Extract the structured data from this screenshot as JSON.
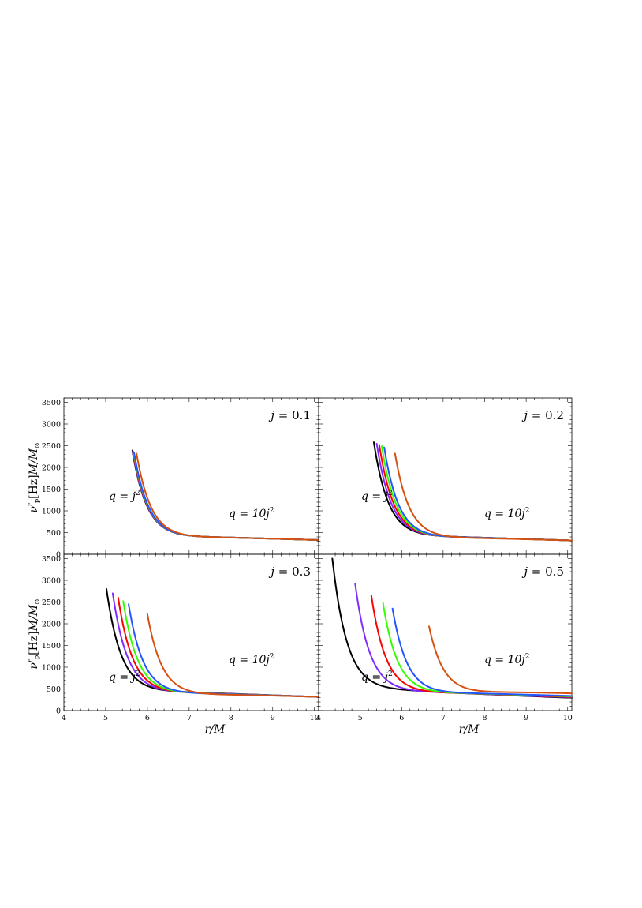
{
  "chart_data": [
    {
      "type": "line",
      "panel_label": "j = 0.1",
      "annotations": {
        "left": "q = j²",
        "right": "q = 10j²"
      },
      "xlim": [
        4,
        10.1
      ],
      "ylim": [
        0,
        3600
      ],
      "yticks": [
        0,
        500,
        1000,
        1500,
        2000,
        2500,
        3000,
        3500
      ],
      "xticks": [],
      "ylabel": "ν_P^r [Hz] M/M_⊙",
      "xlabel": "",
      "series": [
        {
          "color": "#000000",
          "r_start": 5.64,
          "y_start": 2390
        },
        {
          "color": "#7f2bff",
          "r_start": 5.65,
          "y_start": 2375
        },
        {
          "color": "#ff0000",
          "r_start": 5.66,
          "y_start": 2365
        },
        {
          "color": "#33ff00",
          "r_start": 5.67,
          "y_start": 2355
        },
        {
          "color": "#2255ff",
          "r_start": 5.68,
          "y_start": 2345
        },
        {
          "color": "#d65010",
          "r_start": 5.74,
          "y_start": 2320
        }
      ],
      "y_at_10": 330
    },
    {
      "type": "line",
      "panel_label": "j = 0.2",
      "annotations": {
        "left": "q = j²",
        "right": "q = 10j²"
      },
      "xlim": [
        4,
        10.1
      ],
      "ylim": [
        0,
        3600
      ],
      "yticks": [],
      "xticks": [],
      "series": [
        {
          "color": "#000000",
          "r_start": 5.33,
          "y_start": 2580
        },
        {
          "color": "#7f2bff",
          "r_start": 5.4,
          "y_start": 2545
        },
        {
          "color": "#ff0000",
          "r_start": 5.46,
          "y_start": 2520
        },
        {
          "color": "#33ff00",
          "r_start": 5.52,
          "y_start": 2490
        },
        {
          "color": "#2255ff",
          "r_start": 5.58,
          "y_start": 2460
        },
        {
          "color": "#d65010",
          "r_start": 5.84,
          "y_start": 2320
        }
      ],
      "y_at_10": 320
    },
    {
      "type": "line",
      "panel_label": "j = 0.3",
      "annotations": {
        "left": "q = j²",
        "right": "q = 10j²"
      },
      "xlim": [
        4,
        10.1
      ],
      "ylim": [
        0,
        3600
      ],
      "yticks": [
        0,
        500,
        1000,
        1500,
        2000,
        2500,
        3000,
        3500
      ],
      "xticks": [
        4,
        5,
        6,
        7,
        8,
        9,
        10
      ],
      "ylabel": "ν_P^r [Hz] M/M_⊙",
      "xlabel": "r/M",
      "series": [
        {
          "color": "#000000",
          "r_start": 5.02,
          "y_start": 2800
        },
        {
          "color": "#7f2bff",
          "r_start": 5.17,
          "y_start": 2700
        },
        {
          "color": "#ff0000",
          "r_start": 5.3,
          "y_start": 2600
        },
        {
          "color": "#33ff00",
          "r_start": 5.42,
          "y_start": 2520
        },
        {
          "color": "#2255ff",
          "r_start": 5.55,
          "y_start": 2450
        },
        {
          "color": "#d65010",
          "r_start": 6.0,
          "y_start": 2220
        }
      ],
      "y_at_10": 320
    },
    {
      "type": "line",
      "panel_label": "j = 0.5",
      "annotations": {
        "left": "q = j²",
        "right": "q = 10j²"
      },
      "xlim": [
        4,
        10.1
      ],
      "ylim": [
        0,
        3600
      ],
      "yticks": [],
      "xticks": [
        4,
        5,
        6,
        7,
        8,
        9,
        10
      ],
      "xlabel": "r/M",
      "series": [
        {
          "color": "#000000",
          "r_start": 4.33,
          "y_start": 3500
        },
        {
          "color": "#7f2bff",
          "r_start": 4.88,
          "y_start": 2920
        },
        {
          "color": "#ff0000",
          "r_start": 5.27,
          "y_start": 2650
        },
        {
          "color": "#33ff00",
          "r_start": 5.55,
          "y_start": 2480
        },
        {
          "color": "#2255ff",
          "r_start": 5.78,
          "y_start": 2350
        },
        {
          "color": "#d65010",
          "r_start": 6.66,
          "y_start": 1940
        }
      ],
      "y_at_10": [
        300,
        310,
        320,
        330,
        340,
        400
      ]
    }
  ]
}
